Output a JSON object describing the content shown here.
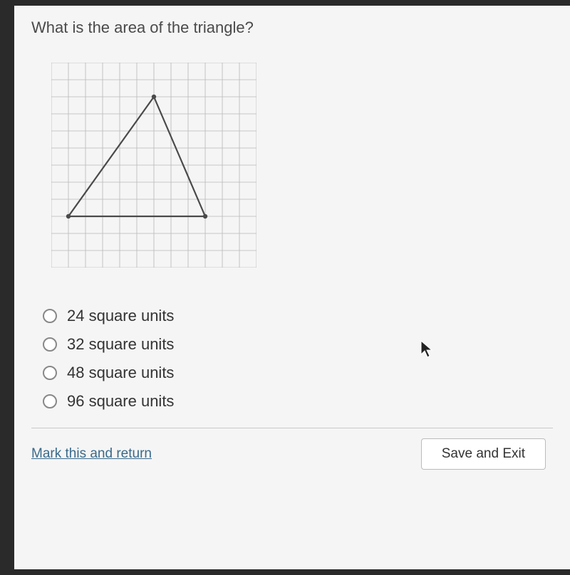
{
  "question": "What is the area of the triangle?",
  "diagram": {
    "grid": {
      "cols": 12,
      "rows": 12,
      "cell": 24,
      "stroke": "#b8b8b8",
      "strokeWidth": 0.8
    },
    "triangle": {
      "vertices": [
        {
          "gx": 6,
          "gy": 2
        },
        {
          "gx": 1,
          "gy": 9
        },
        {
          "gx": 9,
          "gy": 9
        }
      ],
      "stroke": "#4a4a4a",
      "strokeWidth": 2.2,
      "dotRadius": 3.2,
      "dotFill": "#4a4a4a"
    }
  },
  "options": [
    {
      "label": "24 square units"
    },
    {
      "label": "32 square units"
    },
    {
      "label": "48 square units"
    },
    {
      "label": "96 square units"
    }
  ],
  "footer": {
    "mark": "Mark this and return",
    "save": "Save and Exit"
  }
}
